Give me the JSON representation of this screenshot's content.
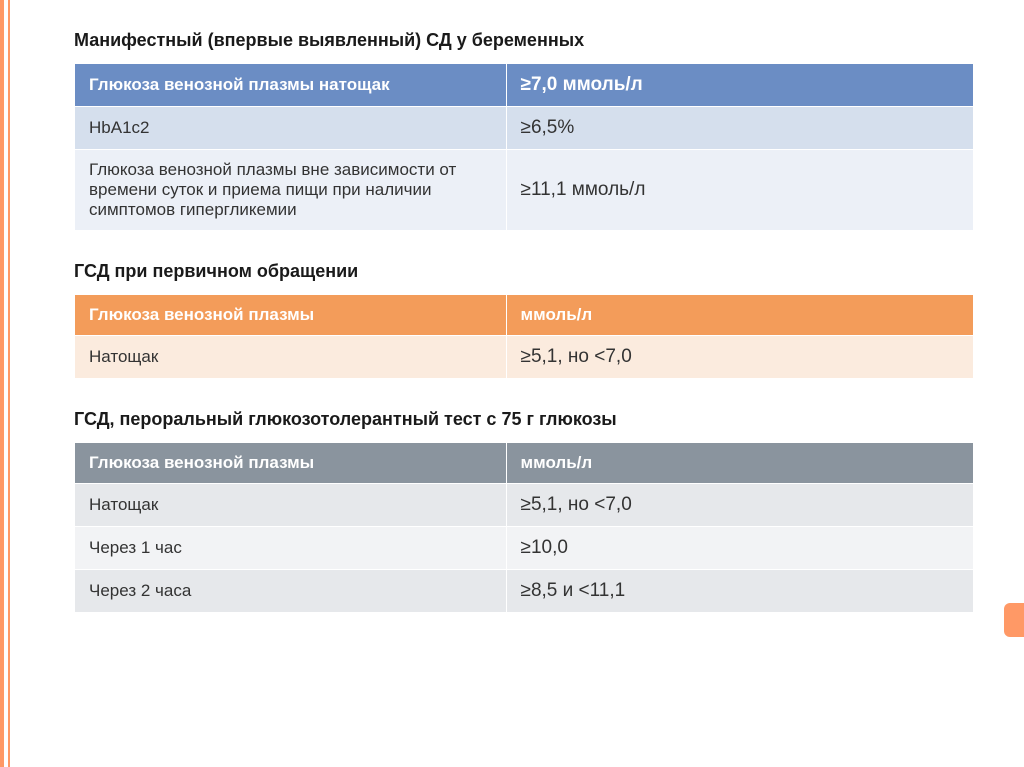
{
  "title1": "Манифестный (впервые выявленный) СД у беременных",
  "table1": {
    "header_bg": "#6b8dc4",
    "row_bg_1": "#d5dfed",
    "row_bg_2": "#ecf0f7",
    "header": [
      "Глюкоза венозной плазмы натощак",
      "≥7,0 ммоль/л"
    ],
    "rows": [
      [
        "HbA1c2",
        "≥6,5%"
      ],
      [
        "Глюкоза венозной плазмы вне зависимости от времени суток и приема пищи при наличии симптомов гипергликемии",
        "≥11,1 ммоль/л"
      ]
    ]
  },
  "title2": "ГСД при первичном обращении",
  "table2": {
    "header_bg": "#f39c5a",
    "row_bg": "#fbebde",
    "header": [
      "Глюкоза венозной плазмы",
      "ммоль/л"
    ],
    "rows": [
      [
        "Натощак",
        "≥5,1, но <7,0"
      ]
    ]
  },
  "title3": "ГСД, пероральный глюкозотолерантный тест с 75 г глюкозы",
  "table3": {
    "header_bg": "#8a949e",
    "row_bg_odd": "#e6e8eb",
    "row_bg_even": "#f2f3f5",
    "header": [
      "Глюкоза венозной плазмы",
      "ммоль/л"
    ],
    "rows": [
      [
        "Натощак",
        "≥5,1, но <7,0"
      ],
      [
        "Через 1 час",
        "≥10,0"
      ],
      [
        "Через 2 часа",
        "≥8,5 и <11,1"
      ]
    ]
  },
  "styling": {
    "accent_border": "#ff9966",
    "background": "#ffffff",
    "title_fontsize": 18,
    "cell_fontsize": 17,
    "value_fontsize": 19
  }
}
